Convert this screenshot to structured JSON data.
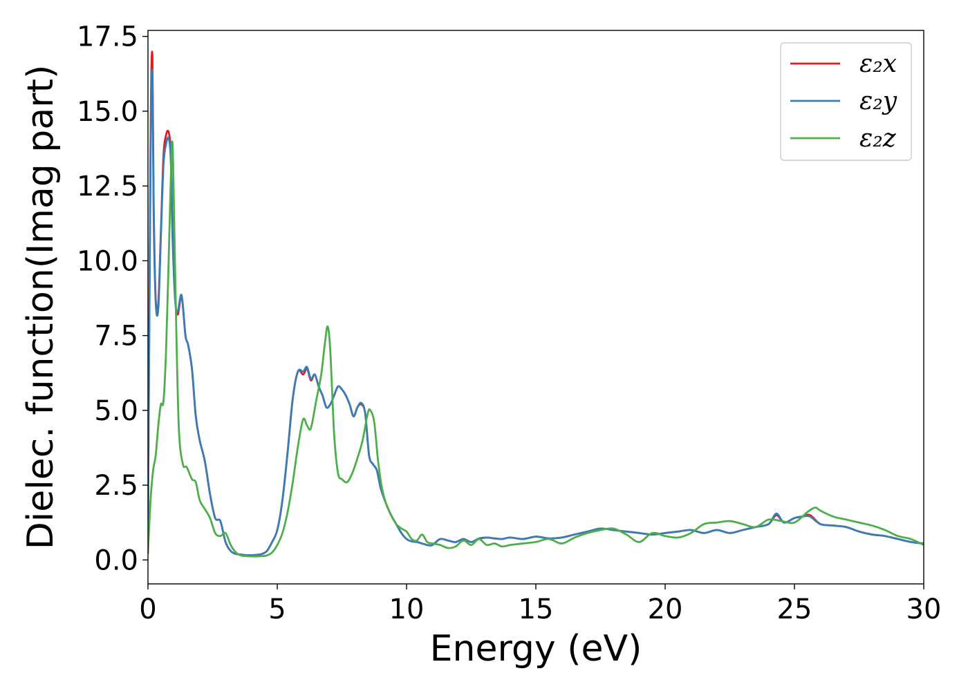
{
  "chart_data": {
    "type": "line",
    "xlabel": "Energy (eV)",
    "ylabel": "Dielec. function(Imag part)",
    "xlim": [
      0,
      30
    ],
    "ylim": [
      -0.8,
      17.7
    ],
    "xticks": [
      0,
      5,
      10,
      15,
      20,
      25,
      30
    ],
    "xtick_labels": [
      "0",
      "5",
      "10",
      "15",
      "20",
      "25",
      "30"
    ],
    "yticks": [
      0,
      2.5,
      5,
      7.5,
      10,
      12.5,
      15,
      17.5
    ],
    "ytick_labels": [
      "0.0",
      "2.5",
      "5.0",
      "7.5",
      "10.0",
      "12.5",
      "15.0",
      "17.5"
    ],
    "grid": false,
    "legend_position": "top-right",
    "series": [
      {
        "name": "ε₂x",
        "color": "#e41a1c",
        "x": [
          0,
          0.1,
          0.17,
          0.22,
          0.3,
          0.4,
          0.5,
          0.6,
          0.7,
          0.8,
          0.88,
          0.95,
          1.05,
          1.15,
          1.3,
          1.45,
          1.55,
          1.7,
          1.85,
          2,
          2.2,
          2.4,
          2.6,
          2.8,
          3,
          3.2,
          3.4,
          3.6,
          3.8,
          4,
          4.2,
          4.4,
          4.6,
          4.8,
          5,
          5.2,
          5.4,
          5.6,
          5.8,
          6,
          6.15,
          6.3,
          6.45,
          6.6,
          6.75,
          6.9,
          7.05,
          7.2,
          7.35,
          7.5,
          7.65,
          7.8,
          7.95,
          8.1,
          8.25,
          8.4,
          8.55,
          8.7,
          8.85,
          9,
          9.2,
          9.4,
          9.6,
          9.8,
          10,
          10.2,
          10.4,
          10.6,
          10.8,
          11,
          11.3,
          11.6,
          11.9,
          12.2,
          12.5,
          12.8,
          13.1,
          13.4,
          13.7,
          14,
          14.5,
          15,
          15.5,
          16,
          16.5,
          17,
          17.5,
          18,
          18.5,
          19,
          19.5,
          20,
          20.5,
          21,
          21.5,
          22,
          22.5,
          23,
          23.5,
          24,
          24.3,
          24.6,
          25,
          25.3,
          25.6,
          26,
          26.5,
          27,
          27.5,
          28,
          28.5,
          29,
          29.5,
          30
        ],
        "y": [
          0.8,
          14,
          16.9,
          12,
          8.7,
          8.6,
          11,
          13.5,
          14.2,
          14.3,
          13.6,
          11,
          8.8,
          8.2,
          8.8,
          7.5,
          7.2,
          6.4,
          4.8,
          4,
          3.3,
          2.2,
          1.4,
          1.3,
          0.6,
          0.3,
          0.2,
          0.18,
          0.16,
          0.16,
          0.17,
          0.2,
          0.3,
          0.6,
          1,
          2,
          3.6,
          5.4,
          6.3,
          6.2,
          6.4,
          6,
          6.2,
          5.8,
          5.5,
          5.1,
          5.2,
          5.5,
          5.8,
          5.7,
          5.5,
          5.2,
          4.8,
          5.1,
          5.2,
          4.9,
          3.5,
          3.2,
          3,
          2.4,
          1.9,
          1.5,
          1.2,
          0.9,
          0.7,
          0.62,
          0.6,
          0.55,
          0.5,
          0.5,
          0.7,
          0.65,
          0.6,
          0.7,
          0.6,
          0.7,
          0.75,
          0.72,
          0.7,
          0.75,
          0.7,
          0.78,
          0.72,
          0.75,
          0.85,
          0.95,
          1.05,
          1,
          0.95,
          0.9,
          0.85,
          0.9,
          0.95,
          1,
          0.9,
          1,
          0.9,
          1,
          1.1,
          1.2,
          1.5,
          1.25,
          1.4,
          1.45,
          1.5,
          1.2,
          1.15,
          1.1,
          0.95,
          0.85,
          0.8,
          0.7,
          0.6,
          0.55
        ]
      },
      {
        "name": "ε₂y",
        "color": "#377eb8",
        "x": [
          0,
          0.1,
          0.17,
          0.22,
          0.3,
          0.4,
          0.5,
          0.6,
          0.7,
          0.8,
          0.88,
          0.95,
          1.05,
          1.15,
          1.3,
          1.45,
          1.55,
          1.7,
          1.85,
          2,
          2.2,
          2.4,
          2.6,
          2.8,
          3,
          3.2,
          3.4,
          3.6,
          3.8,
          4,
          4.2,
          4.4,
          4.6,
          4.8,
          5,
          5.2,
          5.4,
          5.6,
          5.8,
          6,
          6.15,
          6.3,
          6.45,
          6.6,
          6.75,
          6.9,
          7.05,
          7.2,
          7.35,
          7.5,
          7.65,
          7.8,
          7.95,
          8.1,
          8.25,
          8.4,
          8.55,
          8.7,
          8.85,
          9,
          9.2,
          9.4,
          9.6,
          9.8,
          10,
          10.2,
          10.4,
          10.6,
          10.8,
          11,
          11.3,
          11.6,
          11.9,
          12.2,
          12.5,
          12.8,
          13.1,
          13.4,
          13.7,
          14,
          14.5,
          15,
          15.5,
          16,
          16.5,
          17,
          17.5,
          18,
          18.5,
          19,
          19.5,
          20,
          20.5,
          21,
          21.5,
          22,
          22.5,
          23,
          23.5,
          24,
          24.3,
          24.6,
          25,
          25.3,
          25.6,
          26,
          26.5,
          27,
          27.5,
          28,
          28.5,
          29,
          29.5,
          30
        ],
        "y": [
          0.8,
          13.5,
          16.3,
          11.5,
          8.6,
          8.4,
          10.8,
          13.2,
          13.9,
          14.1,
          13.4,
          10.8,
          8.7,
          8.3,
          8.85,
          7.5,
          7.2,
          6.4,
          4.8,
          4,
          3.3,
          2.2,
          1.4,
          1.3,
          0.6,
          0.3,
          0.2,
          0.18,
          0.16,
          0.16,
          0.17,
          0.2,
          0.3,
          0.6,
          1,
          2,
          3.6,
          5.4,
          6.3,
          6.3,
          6.45,
          6.05,
          6.2,
          5.8,
          5.5,
          5.1,
          5.2,
          5.5,
          5.8,
          5.7,
          5.5,
          5.2,
          4.8,
          5.1,
          5.25,
          4.9,
          3.5,
          3.2,
          3,
          2.4,
          1.9,
          1.5,
          1.2,
          0.9,
          0.7,
          0.62,
          0.6,
          0.55,
          0.5,
          0.5,
          0.7,
          0.65,
          0.6,
          0.7,
          0.6,
          0.72,
          0.75,
          0.72,
          0.7,
          0.75,
          0.7,
          0.78,
          0.72,
          0.75,
          0.85,
          0.95,
          1.05,
          1,
          0.95,
          0.9,
          0.85,
          0.9,
          0.95,
          1,
          0.9,
          1,
          0.9,
          1,
          1.1,
          1.2,
          1.55,
          1.25,
          1.4,
          1.45,
          1.45,
          1.2,
          1.15,
          1.1,
          0.95,
          0.85,
          0.8,
          0.7,
          0.6,
          0.55
        ]
      },
      {
        "name": "ε₂z",
        "color": "#4daf4a",
        "x": [
          0,
          0.1,
          0.2,
          0.3,
          0.4,
          0.5,
          0.6,
          0.7,
          0.8,
          0.9,
          0.95,
          1,
          1.1,
          1.2,
          1.35,
          1.5,
          1.7,
          1.85,
          2,
          2.2,
          2.4,
          2.6,
          2.8,
          3,
          3.2,
          3.4,
          3.6,
          3.8,
          4,
          4.2,
          4.4,
          4.6,
          4.8,
          5,
          5.2,
          5.4,
          5.6,
          5.8,
          6,
          6.15,
          6.3,
          6.5,
          6.7,
          6.85,
          6.95,
          7.05,
          7.2,
          7.35,
          7.5,
          7.7,
          7.9,
          8.1,
          8.3,
          8.5,
          8.6,
          8.75,
          8.9,
          9.05,
          9.2,
          9.4,
          9.6,
          9.8,
          10,
          10.2,
          10.4,
          10.6,
          10.8,
          11,
          11.3,
          11.6,
          11.9,
          12.2,
          12.5,
          12.8,
          13.1,
          13.4,
          13.7,
          14,
          14.5,
          15,
          15.5,
          16,
          16.5,
          17,
          17.5,
          18,
          18.5,
          19,
          19.5,
          20,
          20.5,
          21,
          21.5,
          22,
          22.5,
          23,
          23.5,
          24,
          24.5,
          25,
          25.5,
          25.8,
          26,
          26.5,
          27,
          27.5,
          28,
          28.5,
          29,
          29.5,
          30
        ],
        "y": [
          0.2,
          2,
          3,
          3.5,
          4.5,
          5.2,
          5.3,
          7,
          10,
          13.3,
          13.9,
          12,
          7.5,
          4.3,
          3.2,
          3.1,
          2.7,
          2.6,
          2,
          1.7,
          1.4,
          0.9,
          0.8,
          0.9,
          0.5,
          0.25,
          0.15,
          0.13,
          0.12,
          0.12,
          0.13,
          0.15,
          0.25,
          0.5,
          0.9,
          1.6,
          2.6,
          3.8,
          4.7,
          4.5,
          4.4,
          5.3,
          6.2,
          7.3,
          7.8,
          7,
          4.2,
          2.9,
          2.7,
          2.6,
          2.9,
          3.4,
          4,
          4.9,
          5,
          4.6,
          3.3,
          2.4,
          1.9,
          1.5,
          1.2,
          1.05,
          0.95,
          0.7,
          0.65,
          0.85,
          0.6,
          0.55,
          0.5,
          0.4,
          0.45,
          0.65,
          0.5,
          0.7,
          0.5,
          0.55,
          0.45,
          0.5,
          0.55,
          0.6,
          0.7,
          0.55,
          0.75,
          0.9,
          1,
          1.05,
          0.85,
          0.6,
          0.9,
          0.8,
          0.75,
          0.9,
          1.2,
          1.25,
          1.3,
          1.2,
          1.1,
          1.35,
          1.3,
          1.25,
          1.6,
          1.75,
          1.65,
          1.45,
          1.35,
          1.25,
          1.15,
          1,
          0.8,
          0.7,
          0.5
        ]
      }
    ]
  }
}
